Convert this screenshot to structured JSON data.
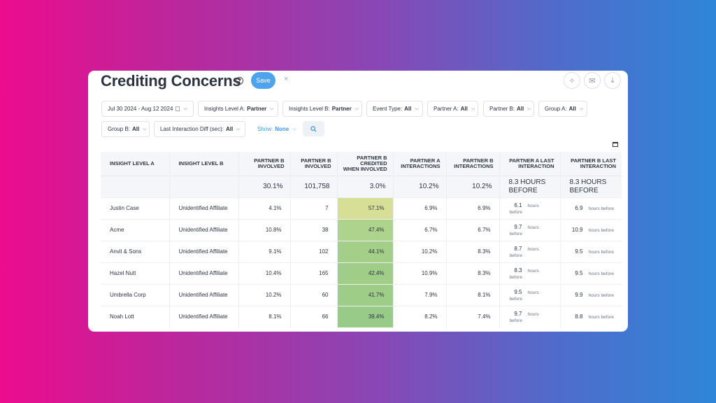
{
  "header": {
    "title": "Crediting Concerns",
    "help_glyph": "?",
    "save_label": "Save",
    "close_glyph": "×"
  },
  "top_icons": [
    {
      "name": "sparkle-icon",
      "glyph": "✧"
    },
    {
      "name": "mail-icon",
      "glyph": "✉"
    },
    {
      "name": "download-icon",
      "glyph": "⤓"
    }
  ],
  "filters": {
    "date": {
      "label": "Jul 30 2024 - Aug 12 2024"
    },
    "insights_a": {
      "label": "Insights Level A:",
      "value": "Partner"
    },
    "insights_b": {
      "label": "Insights Level B:",
      "value": "Partner"
    },
    "event_type": {
      "label": "Event Type:",
      "value": "All"
    },
    "partner_a": {
      "label": "Partner A:",
      "value": "All"
    },
    "partner_b": {
      "label": "Partner B:",
      "value": "All"
    },
    "group_a": {
      "label": "Group A:",
      "value": "All"
    },
    "group_b": {
      "label": "Group B:",
      "value": "All"
    },
    "last_interaction": {
      "label": "Last Interaction Diff (sec):",
      "value": "All"
    },
    "show": {
      "label": "Show:",
      "value": "None"
    }
  },
  "table": {
    "headers": {
      "insight_a": "Insight Level A",
      "insight_b": "Insight Level B",
      "pb_involved_pct": "Partner B Involved",
      "pb_involved_cnt": "Partner B Involved",
      "pb_credited": "Partner B Credited When Involved",
      "pa_interactions": "Partner A Interactions",
      "pb_interactions": "Partner B Interactions",
      "pa_last": "Partner A Last Interaction",
      "pb_last": "Partner B Last Interaction"
    },
    "totals": {
      "pb_involved_pct": "30.1%",
      "pb_involved_cnt": "101,758",
      "pb_credited": "3.0%",
      "pa_interactions": "10.2%",
      "pb_interactions": "10.2%",
      "pa_last": "8.3 HOURS BEFORE",
      "pb_last": "8.3 HOURS BEFORE"
    },
    "hours_unit": "hours before",
    "rows": [
      {
        "a": "Justin Case",
        "b": "Unidentified Affiliate",
        "pct": "4.1%",
        "cnt": "7",
        "cred": "57.1%",
        "pai": "6.9%",
        "pbi": "6.9%",
        "pal": "6.1",
        "pbl": "6.9",
        "cred_color": "#d7de96"
      },
      {
        "a": "Acme",
        "b": "Unidentified Affiliate",
        "pct": "10.8%",
        "cnt": "38",
        "cred": "47.4%",
        "pai": "6.7%",
        "pbi": "6.7%",
        "pal": "9.7",
        "pbl": "10.9",
        "cred_color": "#aed38c"
      },
      {
        "a": "Anvil & Sons",
        "b": "Unidentified Affiliate",
        "pct": "9.1%",
        "cnt": "102",
        "cred": "44.1%",
        "pai": "10.2%",
        "pbi": "8.3%",
        "pal": "8.7",
        "pbl": "9.5",
        "cred_color": "#a4cf88"
      },
      {
        "a": "Hazel Nutt",
        "b": "Unidentified Affiliate",
        "pct": "10.4%",
        "cnt": "165",
        "cred": "42.4%",
        "pai": "10.9%",
        "pbi": "8.3%",
        "pal": "8.3",
        "pbl": "9.5",
        "cred_color": "#a0cd88"
      },
      {
        "a": "Umbrella Corp",
        "b": "Unidentified Affiliate",
        "pct": "10.2%",
        "cnt": "60",
        "cred": "41.7%",
        "pai": "7.9%",
        "pbi": "8.1%",
        "pal": "9.5",
        "pbl": "9.9",
        "cred_color": "#9ecd88"
      },
      {
        "a": "Noah Lott",
        "b": "Unidentified Affiliate",
        "pct": "8.1%",
        "cnt": "66",
        "cred": "39.4%",
        "pai": "8.2%",
        "pbi": "7.4%",
        "pal": "9.7",
        "pbl": "8.8",
        "cred_color": "#98ca88"
      }
    ]
  }
}
